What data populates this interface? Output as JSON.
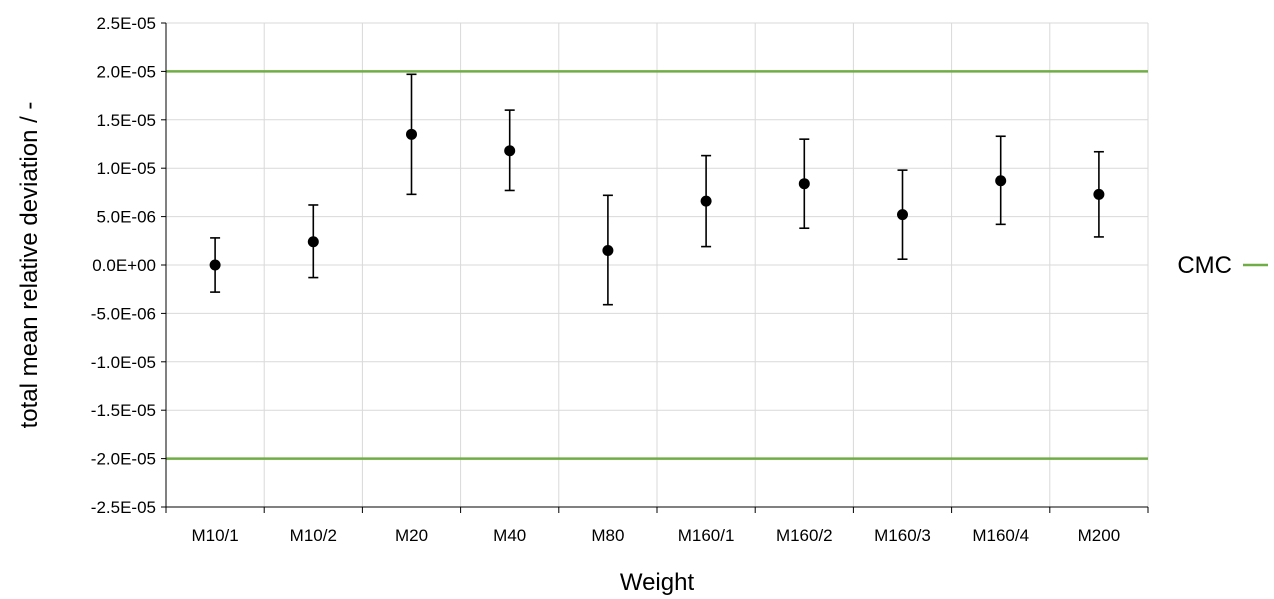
{
  "chart_data": {
    "type": "scatter",
    "title": "",
    "xlabel": "Weight",
    "ylabel": "total mean relative deviation / -",
    "categories": [
      "M10/1",
      "M10/2",
      "M20",
      "M40",
      "M80",
      "M160/1",
      "M160/2",
      "M160/3",
      "M160/4",
      "M200"
    ],
    "series": [
      {
        "name": "",
        "values": [
          0.0,
          2.4e-06,
          1.35e-05,
          1.18e-05,
          1.5e-06,
          6.6e-06,
          8.4e-06,
          5.2e-06,
          8.7e-06,
          7.3e-06
        ],
        "error_low": [
          -2.8e-06,
          -1.3e-06,
          7.3e-06,
          7.7e-06,
          -4.1e-06,
          1.9e-06,
          3.8e-06,
          6e-07,
          4.2e-06,
          2.9e-06
        ],
        "error_high": [
          2.8e-06,
          6.2e-06,
          1.97e-05,
          1.6e-05,
          7.2e-06,
          1.13e-05,
          1.3e-05,
          9.8e-06,
          1.33e-05,
          1.17e-05
        ],
        "color": "#000000"
      },
      {
        "name": "CMC",
        "type": "line",
        "upper": 2e-05,
        "lower": -2e-05,
        "color": "#70ad47"
      }
    ],
    "yticks": [
      "2.5E-05",
      "2.0E-05",
      "1.5E-05",
      "1.0E-05",
      "5.0E-06",
      "0.0E+00",
      "-5.0E-06",
      "-1.0E-05",
      "-1.5E-05",
      "-2.0E-05",
      "-2.5E-05"
    ],
    "ylim": [
      -2.5e-05,
      2.5e-05
    ],
    "ytick_step": 5e-06,
    "grid": true,
    "legend_position": "right"
  }
}
